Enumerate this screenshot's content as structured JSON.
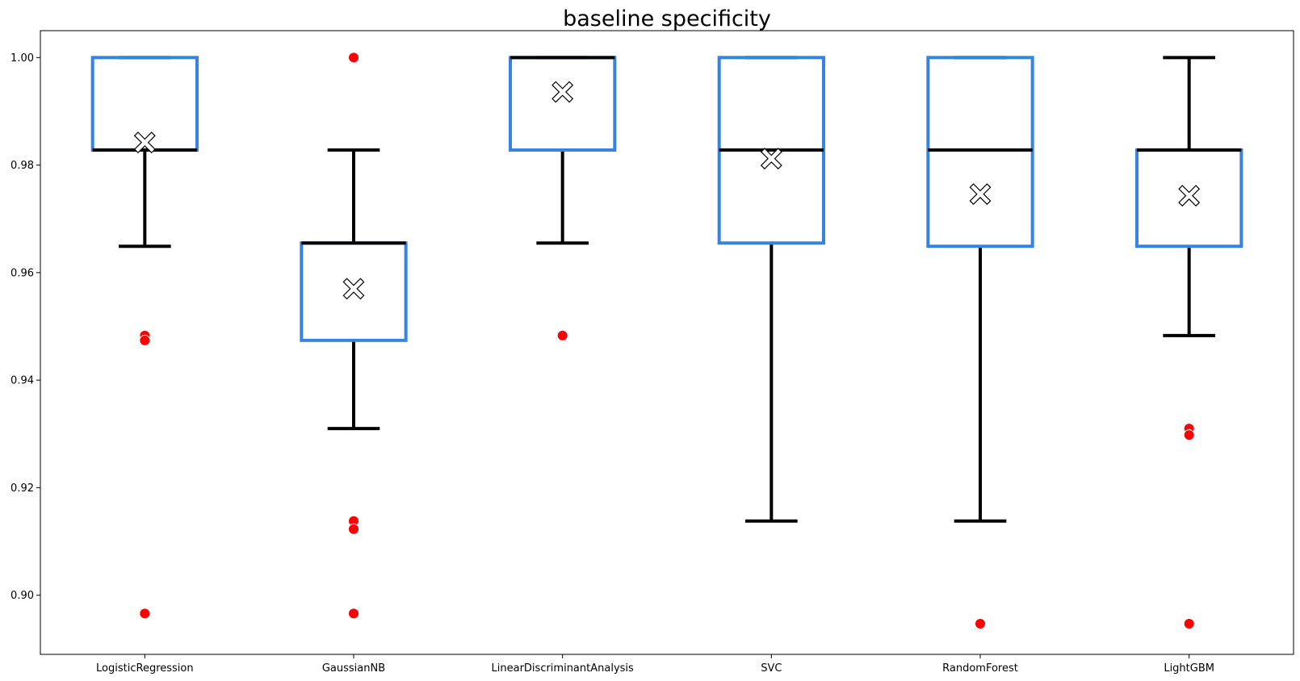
{
  "chart_data": {
    "type": "box",
    "title": "baseline specificity",
    "xlabel": "",
    "ylabel": "",
    "ylim": [
      0.889,
      1.005
    ],
    "yticks": [
      0.9,
      0.92,
      0.94,
      0.96,
      0.98,
      1.0
    ],
    "ytick_labels": [
      "0.90",
      "0.92",
      "0.94",
      "0.96",
      "0.98",
      "1.00"
    ],
    "grid": false,
    "categories": [
      "LogisticRegression",
      "GaussianNB",
      "LinearDiscriminantAnalysis",
      "SVC",
      "RandomForest",
      "LightGBM"
    ],
    "boxes": [
      {
        "label": "LogisticRegression",
        "q1": 0.9828,
        "median": 0.9828,
        "q3": 1.0,
        "whisker_low": 0.9649,
        "whisker_high": 1.0,
        "mean": 0.9842,
        "outliers": [
          0.9483,
          0.9474,
          0.8966
        ]
      },
      {
        "label": "GaussianNB",
        "q1": 0.9474,
        "median": 0.9655,
        "q3": 0.9655,
        "whisker_low": 0.931,
        "whisker_high": 0.9828,
        "mean": 0.957,
        "outliers": [
          1.0,
          0.9138,
          0.9123,
          0.8966
        ]
      },
      {
        "label": "LinearDiscriminantAnalysis",
        "q1": 0.9828,
        "median": 1.0,
        "q3": 1.0,
        "whisker_low": 0.9655,
        "whisker_high": 1.0,
        "mean": 0.9936,
        "outliers": [
          0.9483
        ]
      },
      {
        "label": "SVC",
        "q1": 0.9655,
        "median": 0.9828,
        "q3": 1.0,
        "whisker_low": 0.9138,
        "whisker_high": 1.0,
        "mean": 0.9812,
        "outliers": []
      },
      {
        "label": "RandomForest",
        "q1": 0.9649,
        "median": 0.9828,
        "q3": 1.0,
        "whisker_low": 0.9138,
        "whisker_high": 1.0,
        "mean": 0.9746,
        "outliers": [
          0.8947
        ]
      },
      {
        "label": "LightGBM",
        "q1": 0.9649,
        "median": 0.9828,
        "q3": 0.9828,
        "whisker_low": 0.9483,
        "whisker_high": 1.0,
        "mean": 0.9743,
        "outliers": [
          0.931,
          0.9298,
          0.8947
        ]
      }
    ],
    "colors": {
      "box": "#3484e0",
      "median": "#000000",
      "whisker": "#000000",
      "outlier": "#ff0000",
      "mean_fill": "#ffffff",
      "mean_edge": "#000000"
    }
  }
}
